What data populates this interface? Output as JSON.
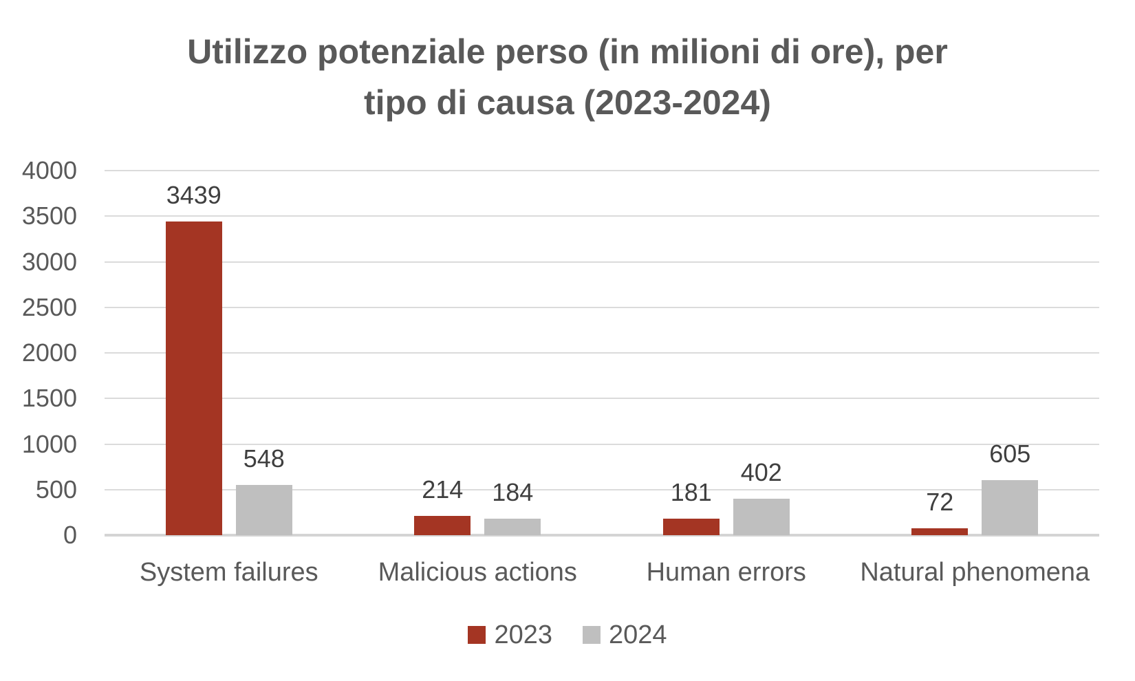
{
  "chart_data": {
    "type": "bar",
    "title": "Utilizzo potenziale perso (in milioni di ore), per tipo di causa (2023-2024)",
    "title_lines": [
      "Utilizzo potenziale perso (in milioni di ore), per",
      "tipo di causa (2023-2024)"
    ],
    "categories": [
      "System failures",
      "Malicious actions",
      "Human errors",
      "Natural phenomena"
    ],
    "series": [
      {
        "name": "2023",
        "color": "#A43523",
        "values": [
          3439,
          214,
          181,
          72
        ]
      },
      {
        "name": "2024",
        "color": "#BFBFBF",
        "values": [
          548,
          184,
          402,
          605
        ]
      }
    ],
    "ylim": [
      0,
      4000
    ],
    "yticks": [
      0,
      500,
      1000,
      1500,
      2000,
      2500,
      3000,
      3500,
      4000
    ],
    "grid": true,
    "legend_position": "bottom",
    "xlabel": "",
    "ylabel": "",
    "colors": {
      "grid": "#DBDBDB",
      "axis": "#D4D4D4",
      "title_text": "#595959",
      "axis_text": "#595959",
      "data_label_text": "#3F3F3F"
    }
  }
}
